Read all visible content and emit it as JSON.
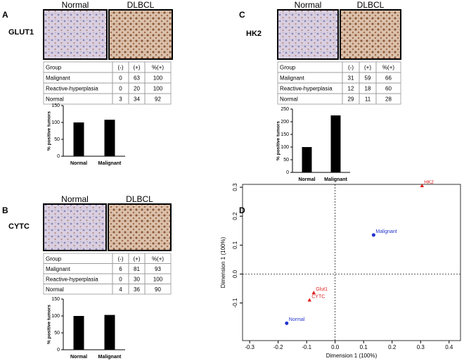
{
  "panels": [
    {
      "letter": "A",
      "marker": "GLUT1",
      "image_labels": [
        "Normal",
        "DLBCL"
      ],
      "table": {
        "header": [
          "Group",
          "(-)",
          "(+)",
          "%(+)"
        ],
        "rows": [
          [
            "Malignant",
            "0",
            "63",
            "100"
          ],
          [
            "Reactive-hyperplasia",
            "0",
            "20",
            "100"
          ],
          [
            "Normal",
            "3",
            "34",
            "92"
          ]
        ]
      },
      "chart": {
        "type": "bar",
        "ylabel": "% positive tumors",
        "categories": [
          "Normal",
          "Malignant"
        ],
        "values": [
          100,
          108
        ],
        "color": "#000000",
        "ylim": [
          0,
          150
        ],
        "yticks": [
          0,
          50,
          100,
          150
        ]
      }
    },
    {
      "letter": "B",
      "marker": "CYTC",
      "image_labels": [
        "Normal",
        "DLBCL"
      ],
      "table": {
        "header": [
          "Group",
          "(-)",
          "(+)",
          "%(+)"
        ],
        "rows": [
          [
            "Malignant",
            "6",
            "81",
            "93"
          ],
          [
            "Reactive-hyperplasia",
            "0",
            "30",
            "100"
          ],
          [
            "Normal",
            "4",
            "36",
            "90"
          ]
        ]
      },
      "chart": {
        "type": "bar",
        "ylabel": "% positive tumors",
        "categories": [
          "Normal",
          "Malignant"
        ],
        "values": [
          100,
          103
        ],
        "color": "#000000",
        "ylim": [
          0,
          150
        ],
        "yticks": [
          0,
          50,
          100,
          150
        ]
      }
    },
    {
      "letter": "C",
      "marker": "HK2",
      "image_labels": [
        "Normal",
        "DLBCL"
      ],
      "table": {
        "header": [
          "Group",
          "(-)",
          "(+)",
          "%(+)"
        ],
        "rows": [
          [
            "Malignant",
            "31",
            "59",
            "66"
          ],
          [
            "Reactive-hyperplasia",
            "12",
            "18",
            "60"
          ],
          [
            "Normal",
            "29",
            "11",
            "28"
          ]
        ]
      },
      "chart": {
        "type": "bar",
        "ylabel": "% positive tumors",
        "categories": [
          "Normal",
          "Malignant"
        ],
        "values": [
          100,
          225
        ],
        "color": "#000000",
        "ylim": [
          0,
          250
        ],
        "yticks": [
          0,
          50,
          100,
          150,
          200,
          250
        ]
      }
    }
  ],
  "scatter": {
    "letter": "D",
    "type": "scatter",
    "xlabel": "Dimension 1 (100%)",
    "ylabel": "Dimension 1 (100%)",
    "xlim": [
      -0.325,
      0.44
    ],
    "ylim": [
      -0.23,
      0.31
    ],
    "xticks": [
      -0.3,
      -0.2,
      -0.1,
      {
        "value": 0,
        "label": "0.0"
      },
      0.1,
      0.2,
      0.3,
      0.4
    ],
    "yticks": [
      -0.1,
      {
        "value": 0,
        "label": "0.0"
      },
      0.1,
      0.2,
      0.3
    ],
    "zero_lines": true,
    "points": [
      {
        "label": "Normal",
        "x": -0.17,
        "y": -0.17,
        "color": "#2233cc",
        "shape": "circle"
      },
      {
        "label": "Malignant",
        "x": 0.135,
        "y": 0.135,
        "color": "#2233cc",
        "shape": "circle"
      },
      {
        "label": "HK2",
        "x": 0.305,
        "y": 0.305,
        "color": "#dd2222",
        "shape": "triangle"
      },
      {
        "label": "Glut1",
        "x": -0.075,
        "y": -0.065,
        "color": "#dd2222",
        "shape": "triangle"
      },
      {
        "label": "CYTC",
        "x": -0.09,
        "y": -0.09,
        "color": "#dd2222",
        "shape": "triangle"
      }
    ]
  }
}
